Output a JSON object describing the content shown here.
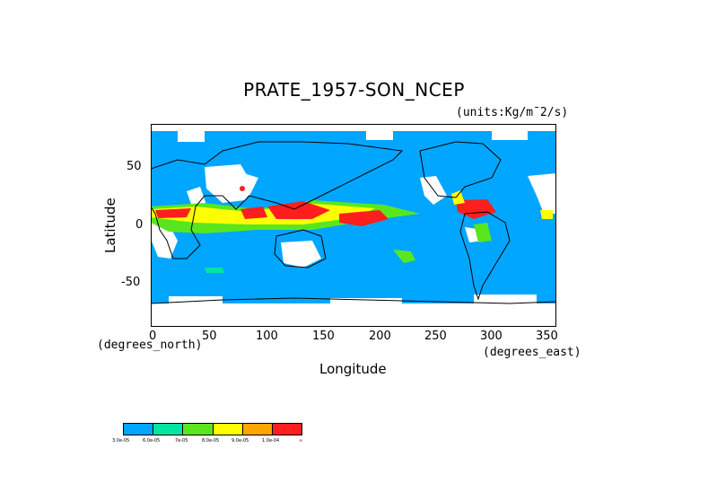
{
  "title": "PRATE_1957-SON_NCEP",
  "units": "(units:Kg/m¯2/s)",
  "x_axis": {
    "label": "Longitude",
    "unit_note": "(degrees_east)",
    "ticks": [
      "0",
      "50",
      "100",
      "150",
      "200",
      "250",
      "300",
      "350"
    ]
  },
  "y_axis": {
    "label": "Latitude",
    "unit_note": "(degrees_north)",
    "ticks": [
      "50",
      "0",
      "-50"
    ]
  },
  "legend": {
    "colors": [
      "#00a6ff",
      "#00e6a0",
      "#5ae61e",
      "#ffff00",
      "#ffa500",
      "#ff1e1e"
    ],
    "labels": [
      "3.0e-05",
      "6.0e-05",
      "7e-05",
      "8.0e-05",
      "9.0e-05",
      "1.0e-04",
      "∞"
    ]
  },
  "map": {
    "background_color": "#00a6ff",
    "dry_color": "#ffffff"
  }
}
